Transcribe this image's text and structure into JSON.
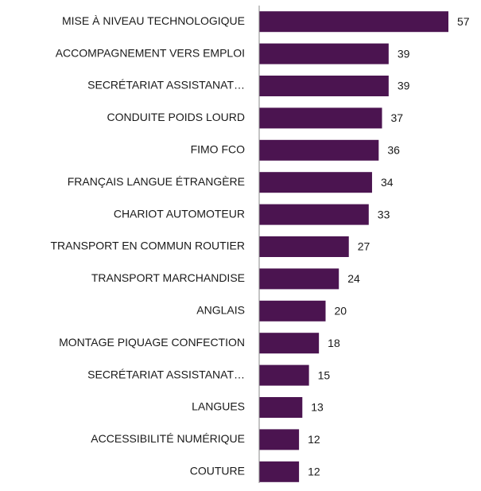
{
  "chart_data": {
    "type": "bar",
    "orientation": "horizontal",
    "categories": [
      "MISE À NIVEAU TECHNOLOGIQUE",
      "ACCOMPAGNEMENT VERS EMPLOI",
      "SECRÉTARIAT ASSISTANAT…",
      "CONDUITE POIDS LOURD",
      "FIMO FCO",
      "FRANÇAIS LANGUE ÉTRANGÈRE",
      "CHARIOT AUTOMOTEUR",
      "TRANSPORT EN COMMUN ROUTIER",
      "TRANSPORT MARCHANDISE",
      "ANGLAIS",
      "MONTAGE PIQUAGE CONFECTION",
      "SECRÉTARIAT ASSISTANAT…",
      "LANGUES",
      "ACCESSIBILITÉ NUMÉRIQUE",
      "COUTURE"
    ],
    "values": [
      57,
      39,
      39,
      37,
      36,
      34,
      33,
      27,
      24,
      20,
      18,
      15,
      13,
      12,
      12
    ],
    "color": "#4b1450"
  }
}
